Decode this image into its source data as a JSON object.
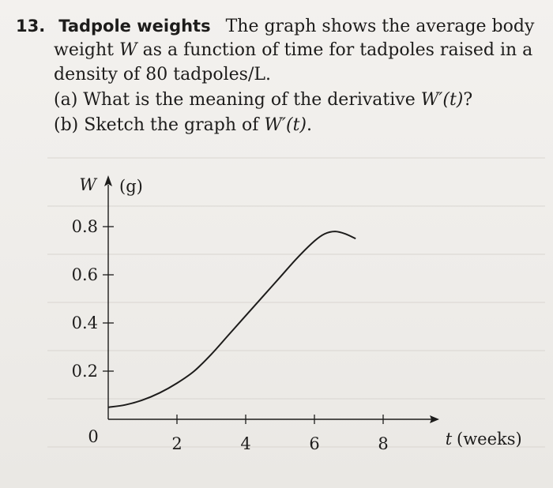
{
  "problem": {
    "number": "13.",
    "title": "Tadpole weights",
    "intro_line1": "The graph shows the average body",
    "intro_line2_a": "weight ",
    "intro_line2_var": "W",
    "intro_line2_b": " as a function of time for tadpoles raised in a",
    "intro_line3": "density of 80 tadpoles/L.",
    "part_a_label": "(a)",
    "part_a_text": "What is the meaning of the derivative ",
    "part_a_expr": "W′(t)",
    "part_a_end": "?",
    "part_b_label": "(b)",
    "part_b_text": "Sketch the graph of ",
    "part_b_expr": "W′(t)",
    "part_b_end": "."
  },
  "chart_data": {
    "type": "line",
    "ylabel_var": "W",
    "ylabel_unit": "(g)",
    "xlabel_var": "t",
    "xlabel_unit": "(weeks)",
    "origin_label": "0",
    "x_ticks": [
      2,
      4,
      6,
      8
    ],
    "x_tick_labels": [
      "2",
      "4",
      "6",
      "8"
    ],
    "y_ticks": [
      0.2,
      0.4,
      0.6,
      0.8
    ],
    "y_tick_labels": [
      "0.2",
      "0.4",
      "0.6",
      "0.8"
    ],
    "xlim": [
      0,
      9.5
    ],
    "ylim": [
      0,
      0.95
    ],
    "series": [
      {
        "x": [
          0,
          0.5,
          1,
          1.5,
          2,
          2.5,
          3,
          3.5,
          4,
          4.5,
          5,
          5.5,
          6,
          6.3,
          6.6,
          6.9,
          7.2
        ],
        "y": [
          0.05,
          0.06,
          0.08,
          0.11,
          0.15,
          0.2,
          0.27,
          0.35,
          0.43,
          0.51,
          0.59,
          0.67,
          0.74,
          0.77,
          0.78,
          0.77,
          0.75
        ]
      }
    ]
  }
}
